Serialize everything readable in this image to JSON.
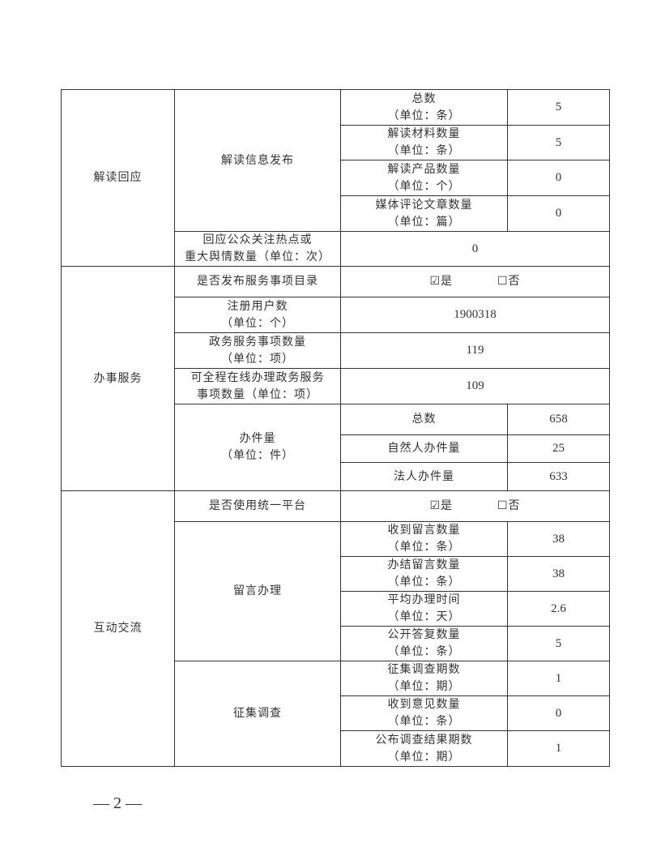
{
  "sections": {
    "interpretation": {
      "label": "解读回应",
      "publish_label": "解读信息发布",
      "total_label": "总数\n（单位：条）",
      "total_value": "5",
      "materials_label": "解读材料数量\n（单位：条）",
      "materials_value": "5",
      "products_label": "解读产品数量\n（单位：个）",
      "products_value": "0",
      "media_label": "媒体评论文章数量\n（单位：篇）",
      "media_value": "0",
      "response_label": "回应公众关注热点或\n重大舆情数量（单位：次）",
      "response_value": "0"
    },
    "services": {
      "label": "办事服务",
      "catalog_label": "是否发布服务事项目录",
      "catalog_yes": "☑是",
      "catalog_no": "☐否",
      "users_label": "注册用户数\n（单位：个）",
      "users_value": "1900318",
      "items_label": "政务服务事项数量\n（单位：项）",
      "items_value": "119",
      "online_label": "可全程在线办理政务服务\n事项数量（单位：项）",
      "online_value": "109",
      "cases_label": "办件量\n（单位：件）",
      "cases_total_label": "总数",
      "cases_total_value": "658",
      "cases_natural_label": "自然人办件量",
      "cases_natural_value": "25",
      "cases_legal_label": "法人办件量",
      "cases_legal_value": "633"
    },
    "interaction": {
      "label": "互动交流",
      "platform_label": "是否使用统一平台",
      "platform_yes": "☑是",
      "platform_no": "☐否",
      "messages_label": "留言办理",
      "received_label": "收到留言数量\n（单位：条）",
      "received_value": "38",
      "closed_label": "办结留言数量\n（单位：条）",
      "closed_value": "38",
      "avg_time_label": "平均办理时间\n（单位：天）",
      "avg_time_value": "2.6",
      "public_reply_label": "公开答复数量\n（单位：条）",
      "public_reply_value": "5",
      "survey_label": "征集调查",
      "survey_periods_label": "征集调查期数\n（单位：期）",
      "survey_periods_value": "1",
      "opinions_label": "收到意见数量\n（单位：条）",
      "opinions_value": "0",
      "results_label": "公布调查结果期数\n（单位：期）",
      "results_value": "1"
    }
  },
  "footer": {
    "page_number": "— 2 —"
  }
}
